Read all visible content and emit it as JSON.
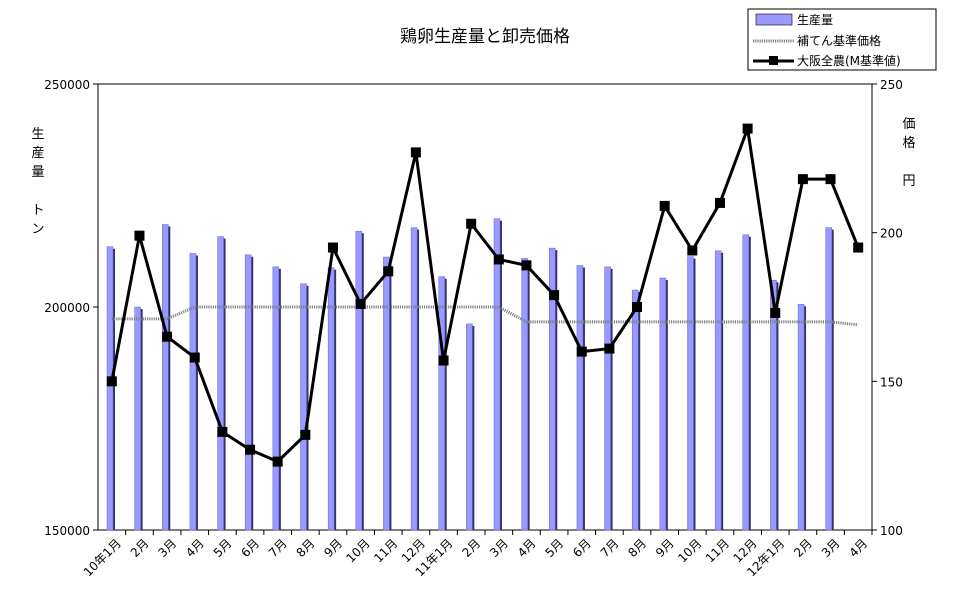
{
  "chart_data": {
    "type": "bar",
    "title": "鶏卵生産量と卸売価格",
    "ylabel_left": [
      "生",
      "産",
      "量",
      "",
      "ト",
      "ン"
    ],
    "ylabel_right": [
      "価",
      "格",
      "",
      "円"
    ],
    "ylim_left": [
      150000,
      250000
    ],
    "ylim_right": [
      100,
      250
    ],
    "yticks_left": [
      "250000",
      "200000",
      "150000"
    ],
    "yticks_right": [
      "250",
      "200",
      "150",
      "100"
    ],
    "categories": [
      "10年1月",
      "2月",
      "3月",
      "4月",
      "5月",
      "6月",
      "7月",
      "8月",
      "9月",
      "10月",
      "11月",
      "12月",
      "11年1月",
      "2月",
      "3月",
      "4月",
      "5月",
      "6月",
      "7月",
      "8月",
      "9月",
      "10月",
      "11月",
      "12月",
      "12年1月",
      "2月",
      "3月",
      "4月"
    ],
    "series": [
      {
        "name": "生産量",
        "kind": "bar",
        "axis": "left",
        "color": "#9999FF",
        "values": [
          213500,
          200000,
          218500,
          212000,
          215800,
          211700,
          209000,
          205200,
          208800,
          217000,
          211200,
          217800,
          206800,
          196200,
          219800,
          210900,
          213200,
          209300,
          209000,
          203800,
          206500,
          211300,
          212600,
          216200,
          206000,
          200600,
          217800,
          null
        ]
      },
      {
        "name": "補てん基準価格",
        "kind": "line",
        "axis": "right",
        "color": "#808080",
        "values": [
          171,
          171,
          171,
          175,
          175,
          175,
          175,
          175,
          175,
          175,
          175,
          175,
          175,
          175,
          175,
          170,
          170,
          170,
          170,
          170,
          170,
          170,
          170,
          170,
          170,
          170,
          170,
          169
        ]
      },
      {
        "name": "大阪全農(M基準値)",
        "kind": "line",
        "axis": "right",
        "color": "#000000",
        "values": [
          150,
          199,
          165,
          158,
          133,
          127,
          123,
          132,
          195,
          176,
          187,
          227,
          157,
          203,
          191,
          189,
          179,
          160,
          161,
          175,
          209,
          194,
          210,
          235,
          173,
          218,
          218,
          195
        ]
      }
    ],
    "legend": {
      "position": "top-right"
    }
  }
}
